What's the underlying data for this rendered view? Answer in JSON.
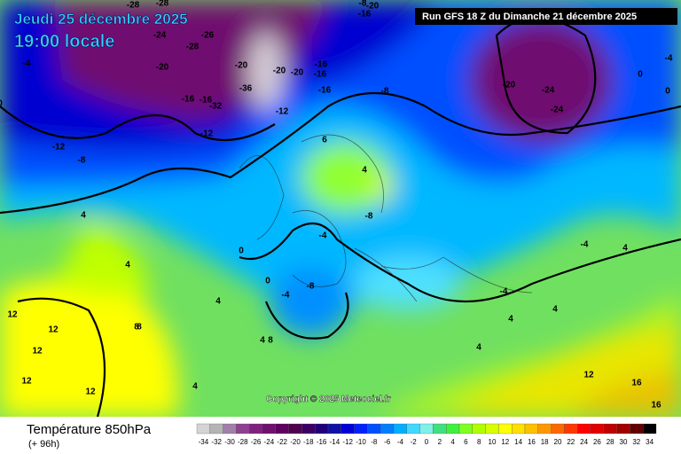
{
  "header": {
    "date": "Jeudi 25 décembre 2025",
    "time": "19:00 locale",
    "run": "Run GFS 18 Z du Dimanche 21 décembre 2025"
  },
  "footer": {
    "title": "Température 850hPa",
    "lead": "(+ 96h)",
    "copyright": "Copyright © 2025 Meteociel.fr"
  },
  "legend": {
    "ticks": [
      -34,
      -32,
      -30,
      -28,
      -26,
      -24,
      -22,
      -20,
      -18,
      -16,
      -14,
      -12,
      -10,
      -8,
      -6,
      -4,
      -2,
      0,
      2,
      4,
      6,
      8,
      10,
      12,
      14,
      16,
      18,
      20,
      22,
      24,
      26,
      28,
      30,
      32,
      34
    ],
    "colors": [
      "#d4d4d4",
      "#b4b4b4",
      "#a080a8",
      "#904090",
      "#802080",
      "#701070",
      "#600060",
      "#50004c",
      "#3c0064",
      "#200078",
      "#1010a8",
      "#0000d8",
      "#0020ff",
      "#0050ff",
      "#0080ff",
      "#00b0ff",
      "#40d8ff",
      "#80f0e8",
      "#40e080",
      "#40f040",
      "#80ff20",
      "#b0ff00",
      "#d8ff00",
      "#ffff00",
      "#ffe000",
      "#ffc000",
      "#ff9800",
      "#ff6800",
      "#ff3800",
      "#ff0000",
      "#e00000",
      "#c00000",
      "#a00000",
      "#600000",
      "#000000"
    ]
  },
  "contour_labels": [
    "-28",
    "-28",
    "-24",
    "-28",
    "-26",
    "-20",
    "-20",
    "-16",
    "-32",
    "-36",
    "-20",
    "-16",
    "-16",
    "-12",
    "-12",
    "-12",
    "-8",
    "-8",
    "-20",
    "-20",
    "-16",
    "-24",
    "-24",
    "-8",
    "-4",
    "-4",
    "0",
    "0",
    "0",
    "4",
    "4",
    "8",
    "8",
    "12",
    "12",
    "12",
    "12",
    "16",
    "16",
    "6",
    "4",
    "-4",
    "-8",
    "-4",
    "0",
    "0",
    "4",
    "4",
    "8",
    "12",
    "-4",
    "4",
    "4",
    "-4",
    "4",
    "-8",
    "-16",
    "-20",
    "-16",
    "4",
    "4",
    "12"
  ]
}
